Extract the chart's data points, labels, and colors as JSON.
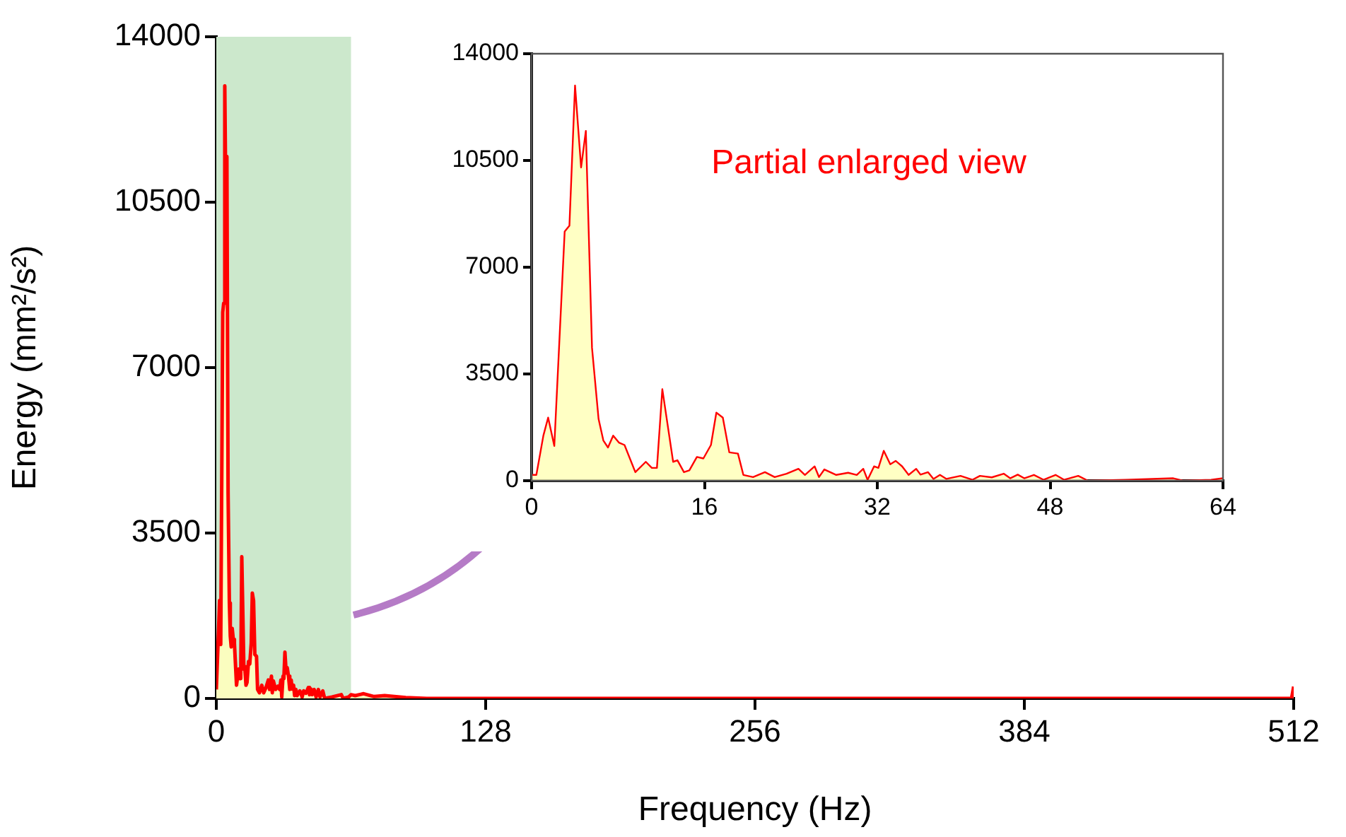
{
  "chart_data": [
    {
      "type": "area",
      "xlabel": "Frequency (Hz)",
      "ylabel": "Energy (mm²/s²)",
      "xlim": [
        0,
        512
      ],
      "xticks": [
        0,
        128,
        256,
        384,
        512
      ],
      "ylim": [
        0,
        14000
      ],
      "yticks": [
        0,
        3500,
        7000,
        10500,
        14000
      ],
      "grid": false,
      "bands": [
        {
          "axis": "x",
          "from": 0,
          "to": 64,
          "color": "#cce8cc"
        }
      ],
      "series": [
        {
          "color": "#ff0000",
          "x": [
            0,
            0.44,
            1.09,
            1.53,
            2.1,
            3.06,
            3.5,
            4.02,
            4.58,
            5.02,
            5.59,
            6.2,
            6.64,
            7.07,
            7.55,
            8.08,
            8.6,
            9.6,
            10.57,
            11.13,
            11.6,
            12.1,
            13.1,
            13.5,
            14.1,
            14.6,
            15.3,
            15.9,
            16.6,
            17.1,
            17.7,
            18.3,
            19.1,
            19.6,
            20.5,
            21.6,
            22.5,
            23.6,
            24.7,
            25.3,
            26.2,
            26.6,
            27.1,
            28.2,
            29.3,
            30.1,
            30.7,
            31.1,
            31.7,
            32.1,
            32.6,
            33.2,
            33.7,
            34.3,
            34.9,
            35.6,
            36,
            36.7,
            37.2,
            37.8,
            38.4,
            39.7,
            40.8,
            41.5,
            42.6,
            43.7,
            44.3,
            45,
            45.6,
            46.5,
            47.4,
            48.5,
            49.3,
            50.6,
            51.5,
            55,
            59.4,
            60.3,
            62.9,
            64,
            66,
            70,
            75,
            80,
            90,
            100,
            200,
            300,
            400,
            511,
            512
          ],
          "values": [
            190,
            190,
            1480,
            2070,
            1140,
            8170,
            8360,
            12960,
            10270,
            11470,
            4360,
            2020,
            1320,
            1090,
            1480,
            1250,
            1170,
            280,
            620,
            420,
            420,
            3000,
            620,
            670,
            280,
            340,
            780,
            730,
            1170,
            2230,
            2070,
            930,
            890,
            190,
            120,
            280,
            120,
            230,
            390,
            190,
            470,
            120,
            370,
            190,
            260,
            190,
            390,
            30,
            470,
            420,
            980,
            540,
            650,
            470,
            190,
            390,
            200,
            280,
            60,
            190,
            60,
            160,
            30,
            160,
            110,
            230,
            80,
            200,
            80,
            190,
            30,
            190,
            30,
            160,
            0,
            30,
            80,
            0,
            30,
            80,
            60,
            100,
            40,
            60,
            20,
            0,
            0,
            0,
            0,
            0,
            250
          ]
        }
      ]
    },
    {
      "type": "area",
      "xlim": [
        0,
        64
      ],
      "xticks": [
        0,
        16,
        32,
        48,
        64
      ],
      "ylim": [
        0,
        14000
      ],
      "yticks": [
        0,
        3500,
        7000,
        10500,
        14000
      ],
      "grid": false,
      "annotations": [
        "Partial enlarged view"
      ],
      "series": [
        {
          "color": "#ff0000",
          "x": [
            0,
            0.44,
            1.09,
            1.53,
            2.1,
            3.06,
            3.5,
            4.02,
            4.58,
            5.02,
            5.59,
            6.2,
            6.64,
            7.07,
            7.55,
            8.08,
            8.6,
            9.6,
            10.57,
            11.13,
            11.6,
            12.1,
            13.1,
            13.5,
            14.1,
            14.6,
            15.3,
            15.9,
            16.6,
            17.1,
            17.7,
            18.3,
            19.1,
            19.6,
            20.5,
            21.6,
            22.5,
            23.6,
            24.7,
            25.3,
            26.2,
            26.6,
            27.1,
            28.2,
            29.3,
            30.1,
            30.7,
            31.1,
            31.7,
            32.1,
            32.6,
            33.2,
            33.7,
            34.3,
            34.9,
            35.6,
            36,
            36.7,
            37.2,
            37.8,
            38.4,
            39.7,
            40.8,
            41.5,
            42.6,
            43.7,
            44.3,
            45,
            45.6,
            46.5,
            47.4,
            48.5,
            49.3,
            50.6,
            51.5,
            55,
            59.4,
            60.3,
            62.9,
            64
          ],
          "values": [
            190,
            190,
            1480,
            2070,
            1140,
            8170,
            8360,
            12960,
            10270,
            11470,
            4360,
            2020,
            1320,
            1090,
            1480,
            1250,
            1170,
            280,
            620,
            420,
            420,
            3000,
            620,
            670,
            280,
            340,
            780,
            730,
            1170,
            2230,
            2070,
            930,
            890,
            190,
            120,
            280,
            120,
            230,
            390,
            190,
            470,
            120,
            370,
            190,
            260,
            190,
            390,
            30,
            470,
            420,
            980,
            540,
            650,
            470,
            190,
            390,
            200,
            280,
            60,
            190,
            60,
            160,
            30,
            160,
            110,
            230,
            80,
            200,
            80,
            190,
            30,
            190,
            30,
            160,
            0,
            30,
            80,
            0,
            30,
            80
          ]
        }
      ]
    }
  ]
}
